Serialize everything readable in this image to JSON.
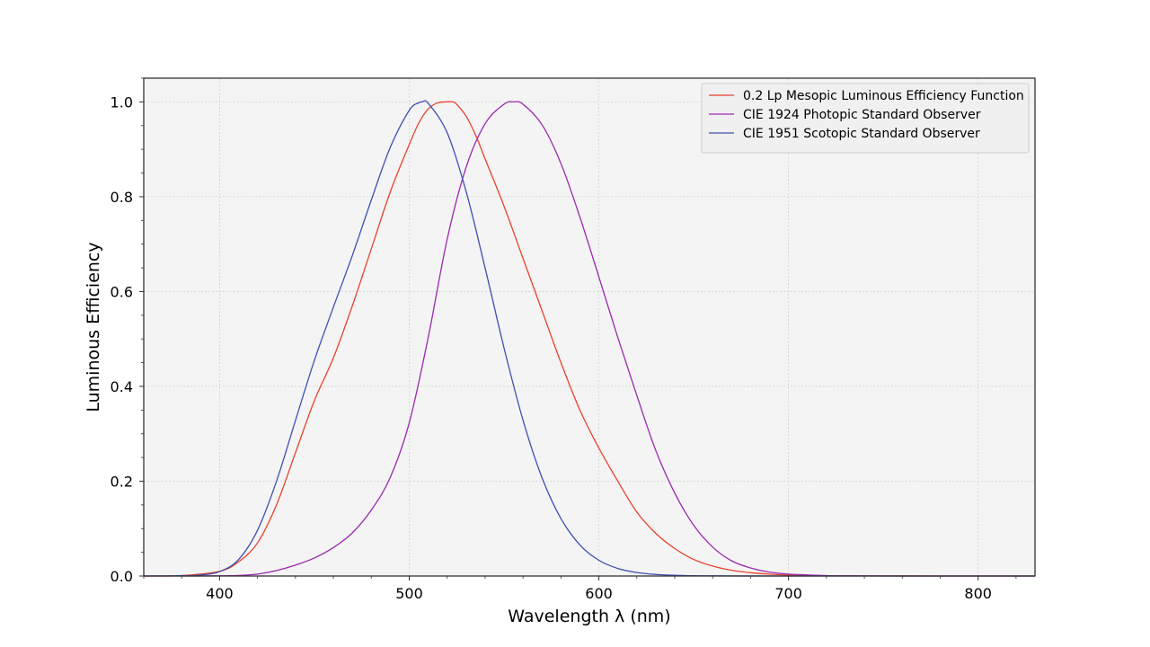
{
  "chart_data": {
    "type": "line",
    "xlabel": "Wavelength λ (nm)",
    "ylabel": "Luminous Efficiency",
    "xlim": [
      360,
      830
    ],
    "ylim": [
      0,
      1.05
    ],
    "xticks": [
      400,
      500,
      600,
      700,
      800
    ],
    "yticks": [
      0.0,
      0.2,
      0.4,
      0.6,
      0.8,
      1.0
    ],
    "grid": true,
    "legend_position": "top-right",
    "background": "#f4f4f4",
    "series": [
      {
        "name": "0.2 Lp Mesopic Luminous Efficiency Function",
        "color": "#e8412c",
        "x": [
          360,
          380,
          400,
          410,
          420,
          430,
          440,
          450,
          460,
          470,
          480,
          490,
          500,
          505,
          510,
          515,
          520,
          523,
          525,
          530,
          535,
          540,
          550,
          560,
          570,
          580,
          590,
          600,
          610,
          620,
          630,
          640,
          650,
          660,
          670,
          680,
          690,
          700,
          720,
          740,
          760,
          780,
          800,
          830
        ],
        "y": [
          0.0,
          0.001,
          0.01,
          0.03,
          0.07,
          0.15,
          0.26,
          0.37,
          0.46,
          0.57,
          0.69,
          0.81,
          0.91,
          0.955,
          0.985,
          0.998,
          1.0,
          1.0,
          0.995,
          0.97,
          0.93,
          0.88,
          0.78,
          0.67,
          0.56,
          0.45,
          0.35,
          0.27,
          0.2,
          0.135,
          0.09,
          0.058,
          0.035,
          0.021,
          0.012,
          0.007,
          0.004,
          0.002,
          0.0007,
          0.0002,
          0.0001,
          0.0,
          0.0,
          0.0
        ]
      },
      {
        "name": "CIE 1924 Photopic Standard Observer",
        "color": "#9c28b0",
        "x": [
          360,
          380,
          400,
          410,
          420,
          430,
          440,
          450,
          460,
          470,
          480,
          490,
          500,
          510,
          520,
          530,
          540,
          550,
          555,
          560,
          570,
          580,
          590,
          600,
          610,
          620,
          630,
          640,
          650,
          660,
          670,
          680,
          690,
          700,
          720,
          740,
          760,
          780,
          800,
          830
        ],
        "y": [
          0.0,
          0.0,
          0.0004,
          0.0012,
          0.004,
          0.0116,
          0.023,
          0.038,
          0.06,
          0.091,
          0.139,
          0.208,
          0.323,
          0.503,
          0.71,
          0.862,
          0.954,
          0.995,
          1.0,
          0.995,
          0.952,
          0.87,
          0.757,
          0.631,
          0.503,
          0.381,
          0.265,
          0.175,
          0.107,
          0.061,
          0.032,
          0.017,
          0.0082,
          0.0041,
          0.001,
          0.00025,
          6e-05,
          1.5e-05,
          0.0,
          0.0
        ]
      },
      {
        "name": "CIE 1951 Scotopic Standard Observer",
        "color": "#3f4fb2",
        "x": [
          360,
          380,
          390,
          400,
          410,
          420,
          430,
          440,
          450,
          460,
          470,
          480,
          490,
          500,
          505,
          507,
          510,
          520,
          530,
          540,
          550,
          560,
          570,
          580,
          590,
          600,
          610,
          620,
          630,
          640,
          650,
          660,
          680,
          700,
          720,
          750,
          780,
          830
        ],
        "y": [
          0.0,
          0.0006,
          0.0022,
          0.0093,
          0.0348,
          0.0966,
          0.1998,
          0.3281,
          0.455,
          0.567,
          0.676,
          0.793,
          0.904,
          0.982,
          0.998,
          1.0,
          0.997,
          0.935,
          0.811,
          0.65,
          0.481,
          0.3288,
          0.2076,
          0.1212,
          0.0655,
          0.03315,
          0.01593,
          0.00737,
          0.003335,
          0.001497,
          0.000677,
          0.000313,
          7.15e-05,
          1.78e-05,
          4.8e-06,
          9e-07,
          0.0,
          0.0
        ]
      }
    ]
  }
}
